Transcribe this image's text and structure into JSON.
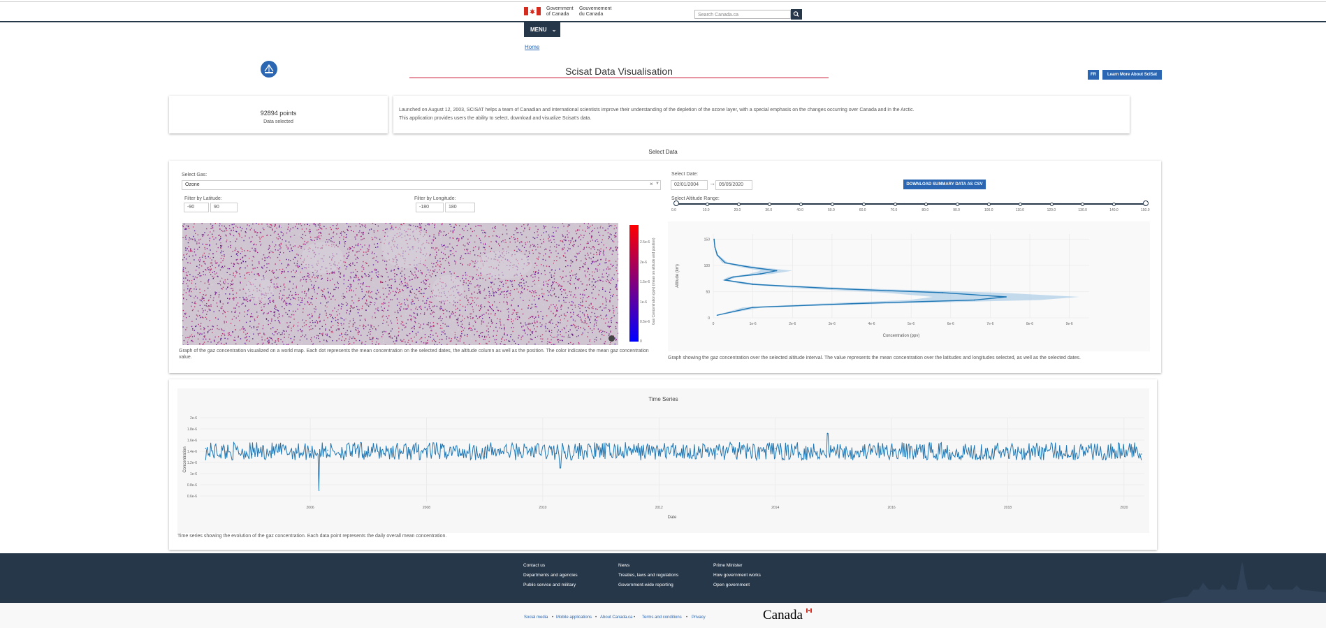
{
  "header": {
    "goc_en_1": "Government",
    "goc_en_2": "of Canada",
    "goc_fr_1": "Gouvernement",
    "goc_fr_2": "du Canada",
    "search_placeholder": "Search Canada.ca",
    "menu_label": "MENU",
    "breadcrumb_home": "Home"
  },
  "app": {
    "title": "Scisat Data Visualisation",
    "lang_button": "FR",
    "learn_button": "Learn More About SciSat",
    "points_value": "92894 points",
    "points_label": "Data selected",
    "description_1": "Launched on August 12, 2003, SCISAT helps a team of Canadian and international scientists improve their understanding of the depletion of the ozone layer, with a special emphasis on the changes occurring over Canada and in the Arctic.",
    "description_2": "This application provides users the ability to select, download and visualize Scisat's data."
  },
  "select": {
    "section_title": "Select Data",
    "gas_label": "Select Gas:",
    "gas_value": "Ozone",
    "lat_label": "Filter by Latitude:",
    "lat_min": "-90",
    "lat_max": "90",
    "lon_label": "Filter by Longitude:",
    "lon_min": "-180",
    "lon_max": "180",
    "date_label": "Select Date:",
    "date_start": "02/01/2004",
    "date_end": "05/05/2020",
    "download_button": "DOWNLOAD SUMMARY DATA AS CSV",
    "altitude_label": "Select Altitude Range:",
    "altitude_ticks": [
      "0.0",
      "10.0",
      "20.0",
      "30.0",
      "40.0",
      "50.0",
      "60.0",
      "70.0",
      "80.0",
      "90.0",
      "100.0",
      "110.0",
      "120.0",
      "130.0",
      "140.0",
      "150.0"
    ],
    "altitude_range": [
      0,
      150
    ]
  },
  "map_panel": {
    "colorbar_ticks": [
      "2.5e-6",
      "2e-6",
      "1.5e-6",
      "1e-6",
      "0.5e-6",
      "0"
    ],
    "colorbar_title": "Gas Concentration (ppv) (mean on altitude and position)",
    "caption": "Graph of the gaz concentration visualized on a world map. Each dot represents the mean concentration on the selected dates, the altitude column as well as the position. The color indicates the mean gaz concentration value."
  },
  "altitude_panel": {
    "caption": "Graph showing the gaz concentration over the selected altitude interval. The value represents the mean concentration over the latitudes and longitudes selected, as well as the selected dates."
  },
  "timeseries_panel": {
    "caption": "Time series showing the evolution of the gaz concentration. Each data point represents the daily overall mean concentration."
  },
  "chart_data": [
    {
      "type": "line",
      "title": "",
      "xlabel": "Concentration (ppv)",
      "ylabel": "Altitude (km)",
      "xlim": [
        0,
        9.5e-06
      ],
      "ylim": [
        0,
        160
      ],
      "x_ticks": [
        "0",
        "1e-6",
        "2e-6",
        "3e-6",
        "4e-6",
        "5e-6",
        "6e-6",
        "7e-6",
        "8e-6",
        "9e-6"
      ],
      "y_ticks": [
        "0",
        "50",
        "100",
        "150"
      ],
      "grid": true,
      "series": [
        {
          "x": [
            2e-08,
            4e-08,
            1e-07,
            3e-07,
            9e-07,
            1.6e-06,
            1.2e-06,
            5e-07,
            3e-07,
            1e-06,
            3e-06,
            5.8e-06,
            7.4e-06,
            6.6e-06,
            3.5e-06,
            1e-06,
            1e-07
          ],
          "y": [
            150,
            135,
            120,
            105,
            97,
            90,
            84,
            78,
            72,
            64,
            56,
            48,
            40,
            34,
            27,
            20,
            5
          ]
        }
      ]
    },
    {
      "type": "line",
      "title": "Time Series",
      "xlabel": "Date",
      "ylabel": "Concentration",
      "ylim": [
        5e-07,
        2e-06
      ],
      "y_ticks": [
        "0.6e-6",
        "0.8e-6",
        "1e-6",
        "1.2e-6",
        "1.4e-6",
        "1.6e-6",
        "1.8e-6",
        "2e-6"
      ],
      "x_ticks": [
        "2006",
        "2008",
        "2010",
        "2012",
        "2014",
        "2016",
        "2018",
        "2020"
      ],
      "xlim": [
        2004.1,
        2020.35
      ],
      "grid": true,
      "series": [
        {
          "x": [
            2004.2,
            2005.0,
            2006.0,
            2006.15,
            2006.3,
            2007.0,
            2008.0,
            2009.0,
            2009.8,
            2010.3,
            2011.0,
            2012.0,
            2013.0,
            2014.0,
            2014.9,
            2016.0,
            2017.0,
            2018.0,
            2019.0,
            2020.3
          ],
          "y": [
            1.45e-06,
            1.35e-06,
            1.4e-06,
            7e-07,
            1.42e-06,
            1.38e-06,
            1.45e-06,
            1.3e-06,
            1.4e-06,
            1.1e-06,
            1.42e-06,
            1.4e-06,
            1.35e-06,
            1.45e-06,
            1.72e-06,
            1.4e-06,
            1.42e-06,
            1.38e-06,
            1.4e-06,
            1.35e-06
          ]
        }
      ]
    }
  ],
  "footer": {
    "col1": [
      "Contact us",
      "Departments and agencies",
      "Public service and military"
    ],
    "col2": [
      "News",
      "Treaties, laws and regulations",
      "Government-wide reporting"
    ],
    "col3": [
      "Prime Minister",
      "How government works",
      "Open government"
    ],
    "bottom_links": [
      "Social media",
      "Mobile applications",
      "About Canada.ca",
      "Terms and conditions",
      "Privacy"
    ],
    "wordmark": "Canada"
  },
  "colors": {
    "navy": "#26374a",
    "link_blue": "#2b66b2",
    "accent_red": "#c8102e",
    "plot_line": "#1f77b4"
  }
}
